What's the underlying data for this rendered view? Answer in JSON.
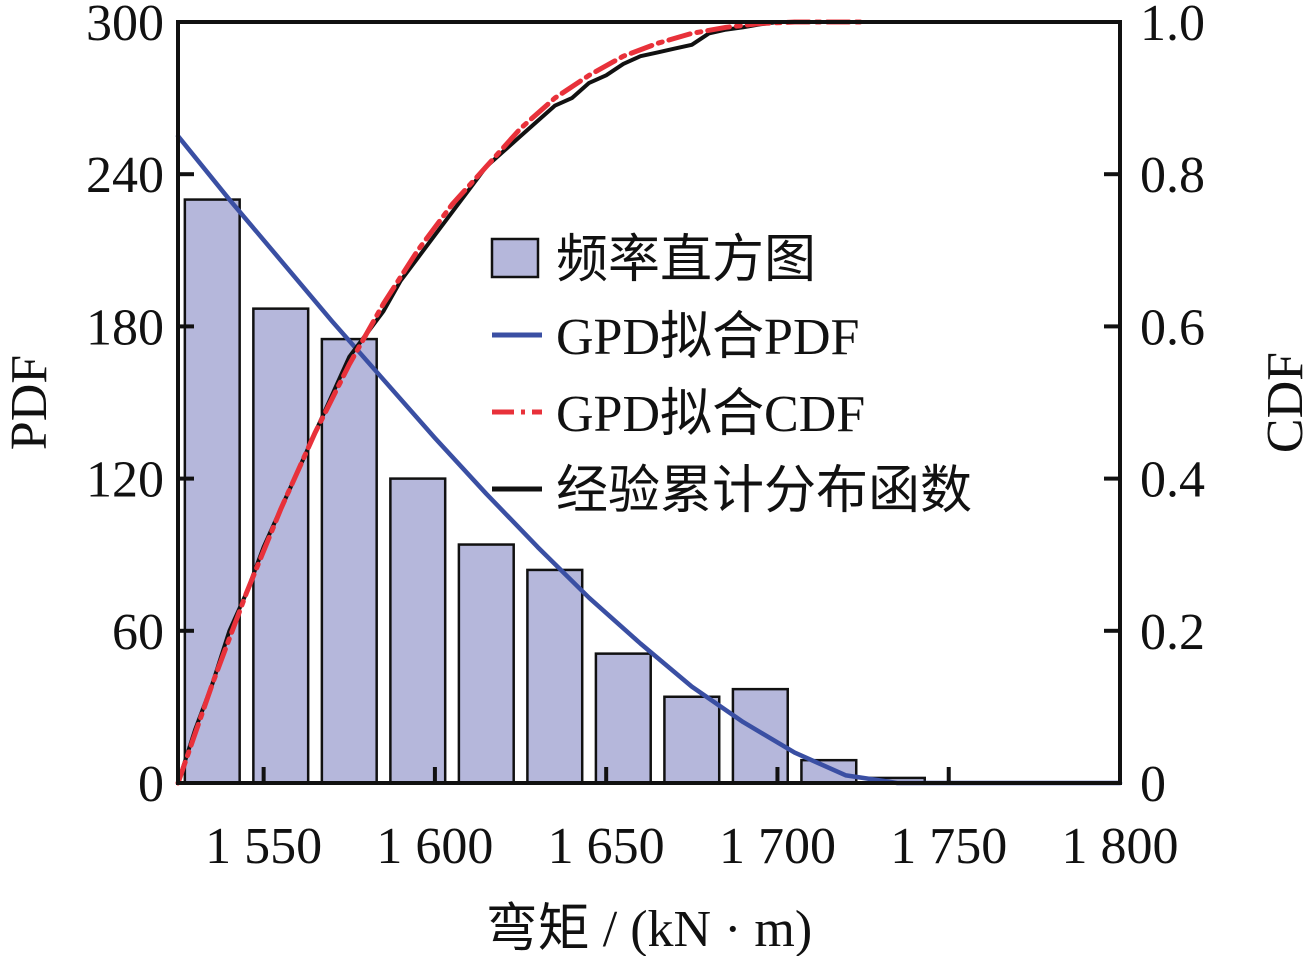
{
  "chart_data": {
    "type": "bar",
    "xlabel": "弯矩 / (kN · m)",
    "ylabel_left": "PDF",
    "ylabel_right": "CDF",
    "xlim": [
      1525,
      1800
    ],
    "ylim_left": [
      0,
      300
    ],
    "ylim_right": [
      0,
      1.0
    ],
    "x_ticks": [
      {
        "value": 1550,
        "label": "1 550"
      },
      {
        "value": 1600,
        "label": "1 600"
      },
      {
        "value": 1650,
        "label": "1 650"
      },
      {
        "value": 1700,
        "label": "1 700"
      },
      {
        "value": 1750,
        "label": "1 750"
      },
      {
        "value": 1800,
        "label": "1 800"
      }
    ],
    "y_left_ticks": [
      "0",
      "60",
      "120",
      "180",
      "240",
      "300"
    ],
    "y_right_ticks": [
      "0",
      "0.2",
      "0.4",
      "0.6",
      "0.8",
      "1.0"
    ],
    "legend_position": "center-right",
    "legend": [
      {
        "label": "频率直方图",
        "type": "bar",
        "color": "#b5b7db"
      },
      {
        "label": "GPD拟合PDF",
        "type": "line",
        "color": "#3a4fa3"
      },
      {
        "label": "GPD拟合CDF",
        "type": "dashdot",
        "color": "#e8313a"
      },
      {
        "label": "经验累计分布函数",
        "type": "line",
        "color": "#111111"
      }
    ],
    "histogram": {
      "name": "频率直方图",
      "color": "#b5b7db",
      "bins": [
        {
          "x0": 1527,
          "x1": 1543,
          "value": 230
        },
        {
          "x0": 1547,
          "x1": 1563,
          "value": 187
        },
        {
          "x0": 1567,
          "x1": 1583,
          "value": 175
        },
        {
          "x0": 1587,
          "x1": 1603,
          "value": 120
        },
        {
          "x0": 1607,
          "x1": 1623,
          "value": 94
        },
        {
          "x0": 1627,
          "x1": 1643,
          "value": 84
        },
        {
          "x0": 1647,
          "x1": 1663,
          "value": 51
        },
        {
          "x0": 1667,
          "x1": 1683,
          "value": 34
        },
        {
          "x0": 1687,
          "x1": 1703,
          "value": 37
        },
        {
          "x0": 1707,
          "x1": 1723,
          "value": 9
        },
        {
          "x0": 1727,
          "x1": 1743,
          "value": 2
        }
      ]
    },
    "series": [
      {
        "name": "GPD拟合PDF",
        "axis": "left",
        "color": "#3a4fa3",
        "x": [
          1525,
          1540,
          1555,
          1570,
          1585,
          1600,
          1615,
          1630,
          1645,
          1660,
          1675,
          1690,
          1705,
          1720,
          1735,
          1750,
          1765,
          1780,
          1800
        ],
        "y": [
          255,
          230,
          206,
          182,
          159,
          136,
          114,
          93,
          73,
          55,
          38,
          24,
          12,
          3,
          0,
          0,
          0,
          0,
          0
        ]
      },
      {
        "name": "GPD拟合CDF",
        "axis": "right",
        "color": "#e8313a",
        "x": [
          1525,
          1535,
          1545,
          1555,
          1565,
          1575,
          1585,
          1595,
          1605,
          1615,
          1625,
          1635,
          1645,
          1655,
          1665,
          1675,
          1685,
          1695,
          1705,
          1715,
          1725
        ],
        "y": [
          0.0,
          0.13,
          0.25,
          0.36,
          0.46,
          0.55,
          0.63,
          0.7,
          0.76,
          0.81,
          0.86,
          0.9,
          0.93,
          0.955,
          0.972,
          0.985,
          0.993,
          0.998,
          1.0,
          1.0,
          1.0
        ]
      },
      {
        "name": "经验累计分布函数",
        "axis": "right",
        "color": "#111111",
        "x": [
          1525,
          1530,
          1535,
          1540,
          1545,
          1550,
          1555,
          1560,
          1565,
          1570,
          1575,
          1580,
          1585,
          1590,
          1595,
          1600,
          1605,
          1610,
          1615,
          1620,
          1625,
          1630,
          1635,
          1640,
          1645,
          1650,
          1655,
          1660,
          1665,
          1670,
          1675,
          1680,
          1685,
          1690,
          1695,
          1700,
          1705,
          1710
        ],
        "y": [
          0.0,
          0.07,
          0.13,
          0.2,
          0.25,
          0.31,
          0.36,
          0.41,
          0.46,
          0.51,
          0.56,
          0.59,
          0.62,
          0.66,
          0.69,
          0.72,
          0.75,
          0.78,
          0.81,
          0.83,
          0.85,
          0.87,
          0.89,
          0.9,
          0.92,
          0.93,
          0.945,
          0.955,
          0.96,
          0.965,
          0.97,
          0.985,
          0.99,
          0.993,
          0.997,
          1.0,
          1.0,
          1.0
        ]
      }
    ]
  }
}
